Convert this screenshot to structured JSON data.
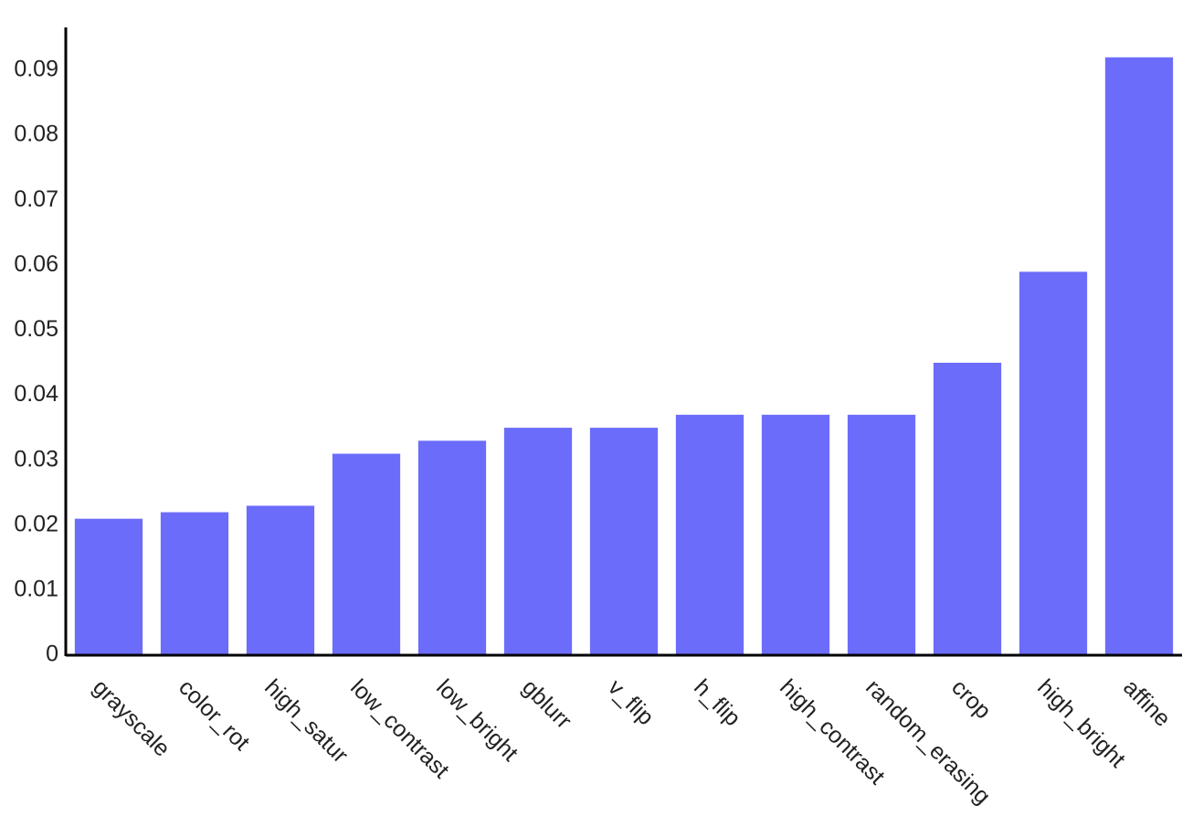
{
  "chart_data": {
    "type": "bar",
    "categories": [
      "grayscale",
      "color_rot",
      "high_satur",
      "low_contrast",
      "low_bright",
      "gblurr",
      "v_flip",
      "h_flip",
      "high_contrast",
      "random_erasing",
      "crop",
      "high_bright",
      "affine"
    ],
    "values": [
      0.021,
      0.022,
      0.023,
      0.031,
      0.033,
      0.035,
      0.035,
      0.037,
      0.037,
      0.037,
      0.045,
      0.059,
      0.092
    ],
    "color": "#6c6cfa",
    "ylim": [
      0,
      0.0966
    ],
    "yticks": [
      0,
      0.01,
      0.02,
      0.03,
      0.04,
      0.05,
      0.06,
      0.07,
      0.08,
      0.09
    ],
    "grid": false
  }
}
